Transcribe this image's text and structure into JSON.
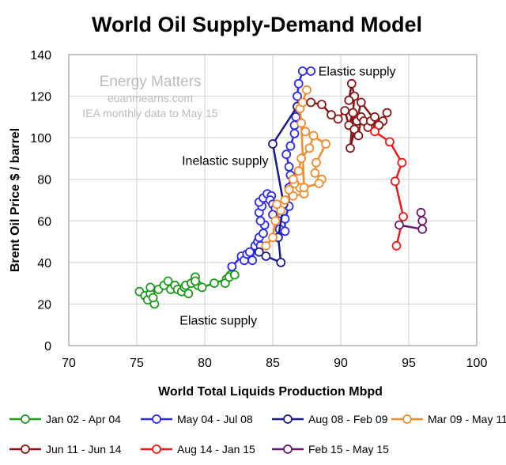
{
  "chart_data": {
    "type": "scatter",
    "title": "World Oil Supply-Demand Model",
    "xlabel": "World Total Liquids Production Mbpd",
    "ylabel": "Brent Oil Price $ / barrel",
    "xlim": [
      70,
      100
    ],
    "ylim": [
      0,
      140
    ],
    "xticks": [
      "70",
      "75",
      "80",
      "85",
      "90",
      "95",
      "100"
    ],
    "yticks": [
      "0",
      "20",
      "40",
      "60",
      "80",
      "100",
      "120",
      "140"
    ],
    "grid": true,
    "legend_position": "bottom",
    "watermark": [
      "Energy Matters",
      "euanmearns.com",
      "IEA monthly data to May 15"
    ],
    "annotations": [
      {
        "text": "Elastic supply",
        "x": 91.2,
        "y": 130
      },
      {
        "text": "Inelastic supply",
        "x": 81.5,
        "y": 87
      },
      {
        "text": "Elastic supply",
        "x": 81,
        "y": 10
      }
    ],
    "series": [
      {
        "name": "Jan 02 - Apr 04",
        "color": "#1e9a1e",
        "points": [
          [
            75.2,
            26
          ],
          [
            75.6,
            24
          ],
          [
            75.8,
            22
          ],
          [
            76.0,
            25
          ],
          [
            76.3,
            20
          ],
          [
            76.2,
            23
          ],
          [
            76.0,
            28
          ],
          [
            76.6,
            27
          ],
          [
            77.0,
            29
          ],
          [
            77.3,
            31
          ],
          [
            77.5,
            27
          ],
          [
            77.8,
            29
          ],
          [
            78.0,
            27
          ],
          [
            78.3,
            26
          ],
          [
            78.5,
            28
          ],
          [
            78.8,
            25
          ],
          [
            78.6,
            29
          ],
          [
            79.0,
            30
          ],
          [
            79.3,
            33
          ],
          [
            79.5,
            29
          ],
          [
            79.3,
            31
          ],
          [
            79.8,
            28
          ],
          [
            80.7,
            30
          ],
          [
            81.6,
            32
          ],
          [
            81.9,
            34
          ],
          [
            81.5,
            30
          ],
          [
            81.8,
            33
          ],
          [
            82.2,
            34
          ]
        ]
      },
      {
        "name": "May 04 - Jul 08",
        "color": "#2a2af0",
        "points": [
          [
            82.0,
            38
          ],
          [
            82.7,
            43
          ],
          [
            82.9,
            41
          ],
          [
            83.1,
            44
          ],
          [
            83.3,
            45
          ],
          [
            83.5,
            41
          ],
          [
            83.7,
            48
          ],
          [
            83.9,
            50
          ],
          [
            84.1,
            48
          ],
          [
            84.0,
            52
          ],
          [
            84.3,
            54
          ],
          [
            84.4,
            58
          ],
          [
            84.1,
            60
          ],
          [
            84.0,
            64
          ],
          [
            84.2,
            67
          ],
          [
            84.0,
            69
          ],
          [
            84.3,
            71
          ],
          [
            84.6,
            73
          ],
          [
            84.9,
            72
          ],
          [
            84.8,
            70
          ],
          [
            85.0,
            68
          ],
          [
            85.2,
            66
          ],
          [
            85.0,
            63
          ],
          [
            85.4,
            60
          ],
          [
            85.6,
            58
          ],
          [
            85.5,
            56
          ],
          [
            85.9,
            55
          ],
          [
            85.9,
            61
          ],
          [
            86.2,
            67
          ],
          [
            86.2,
            76
          ],
          [
            86.3,
            82
          ],
          [
            86.2,
            86
          ],
          [
            86.0,
            92
          ],
          [
            86.3,
            96
          ],
          [
            86.6,
            102
          ],
          [
            86.6,
            106
          ],
          [
            86.7,
            110
          ],
          [
            86.9,
            114
          ],
          [
            86.8,
            120
          ],
          [
            86.9,
            126
          ],
          [
            87.2,
            132
          ],
          [
            87.8,
            132
          ]
        ]
      },
      {
        "name": "Aug 08 - Feb 09",
        "color": "#1a1a8a",
        "points": [
          [
            86.8,
            115
          ],
          [
            85.0,
            97
          ],
          [
            85.8,
            68
          ],
          [
            85.4,
            52
          ],
          [
            85.6,
            40
          ],
          [
            84.5,
            43
          ],
          [
            84.0,
            45
          ]
        ]
      },
      {
        "name": "Mar 09 - May 11",
        "color": "#f58a2a",
        "points": [
          [
            84.5,
            48
          ],
          [
            85.0,
            52
          ],
          [
            85.2,
            60
          ],
          [
            85.6,
            65
          ],
          [
            85.3,
            68
          ],
          [
            85.9,
            70
          ],
          [
            86.5,
            72
          ],
          [
            87.3,
            73
          ],
          [
            87.0,
            76
          ],
          [
            86.6,
            78
          ],
          [
            86.2,
            75
          ],
          [
            86.5,
            80
          ],
          [
            86.9,
            84
          ],
          [
            87.1,
            90
          ],
          [
            87.7,
            95
          ],
          [
            88.0,
            101
          ],
          [
            87.4,
            103
          ],
          [
            88.9,
            97
          ],
          [
            88.2,
            88
          ],
          [
            88.1,
            83
          ],
          [
            88.6,
            80
          ],
          [
            88.4,
            78
          ],
          [
            87.3,
            76
          ],
          [
            87.1,
            107
          ],
          [
            87.0,
            114
          ],
          [
            87.2,
            117
          ],
          [
            87.5,
            123
          ]
        ]
      },
      {
        "name": "Jun 11 - Jun 14",
        "color": "#8a1515",
        "points": [
          [
            87.8,
            117
          ],
          [
            88.6,
            116
          ],
          [
            89.3,
            111
          ],
          [
            89.8,
            109
          ],
          [
            90.3,
            113
          ],
          [
            90.6,
            106
          ],
          [
            90.9,
            112
          ],
          [
            91.2,
            108
          ],
          [
            91.0,
            104
          ],
          [
            91.3,
            101
          ],
          [
            91.5,
            110
          ],
          [
            91.7,
            108
          ],
          [
            92.0,
            105
          ],
          [
            92.2,
            108
          ],
          [
            92.5,
            110
          ],
          [
            92.7,
            106
          ],
          [
            93.1,
            108
          ],
          [
            93.4,
            112
          ],
          [
            92.8,
            106
          ],
          [
            91.5,
            117
          ],
          [
            90.7,
            95
          ],
          [
            91.0,
            120
          ],
          [
            90.8,
            126
          ],
          [
            90.6,
            118
          ]
        ]
      },
      {
        "name": "Aug 14 - Jan 15",
        "color": "#f01818",
        "points": [
          [
            92.5,
            103
          ],
          [
            93.6,
            98
          ],
          [
            94.5,
            88
          ],
          [
            94.0,
            79
          ],
          [
            94.6,
            62
          ],
          [
            94.1,
            48
          ]
        ]
      },
      {
        "name": "Feb 15 - May 15",
        "color": "#6a1a6a",
        "points": [
          [
            94.3,
            58
          ],
          [
            96.0,
            56
          ],
          [
            96.0,
            60
          ],
          [
            95.9,
            64
          ]
        ]
      }
    ]
  }
}
